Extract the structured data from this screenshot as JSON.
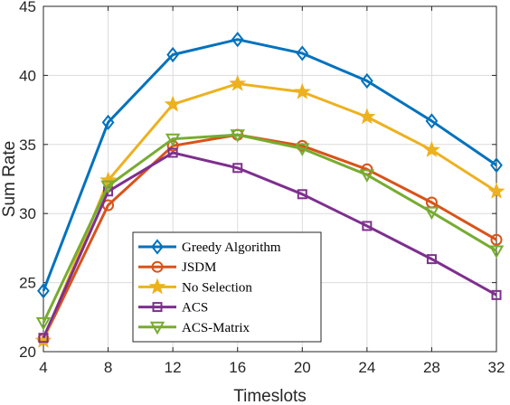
{
  "chart_data": {
    "type": "line",
    "title": "",
    "xlabel": "Timeslots",
    "ylabel": "Sum Rate",
    "x": [
      4,
      8,
      12,
      16,
      20,
      24,
      28,
      32
    ],
    "xlim": [
      4,
      32
    ],
    "ylim": [
      20,
      45
    ],
    "xticks": [
      "4",
      "8",
      "12",
      "16",
      "20",
      "24",
      "28",
      "32"
    ],
    "yticks": [
      "20",
      "25",
      "30",
      "35",
      "40",
      "45"
    ],
    "grid": true,
    "legend_position": "bottom-left",
    "series": [
      {
        "name": "Greedy Algorithm",
        "color": "#0072BD",
        "marker": "diamond",
        "values": [
          24.4,
          36.6,
          41.5,
          42.6,
          41.6,
          39.6,
          36.7,
          33.5
        ]
      },
      {
        "name": "JSDM",
        "color": "#D95319",
        "marker": "circle",
        "values": [
          20.9,
          30.6,
          34.9,
          35.7,
          34.9,
          33.2,
          30.8,
          28.1
        ]
      },
      {
        "name": "No Selection",
        "color": "#EDB120",
        "marker": "star",
        "values": [
          20.8,
          32.4,
          37.9,
          39.4,
          38.8,
          37.0,
          34.6,
          31.6
        ]
      },
      {
        "name": "ACS",
        "color": "#7E2F8E",
        "marker": "square",
        "values": [
          21.0,
          31.6,
          34.4,
          33.3,
          31.4,
          29.1,
          26.7,
          24.1
        ]
      },
      {
        "name": "ACS-Matrix",
        "color": "#77AC30",
        "marker": "triangle-down",
        "values": [
          22.1,
          32.0,
          35.4,
          35.7,
          34.7,
          32.8,
          30.1,
          27.3
        ]
      }
    ]
  }
}
